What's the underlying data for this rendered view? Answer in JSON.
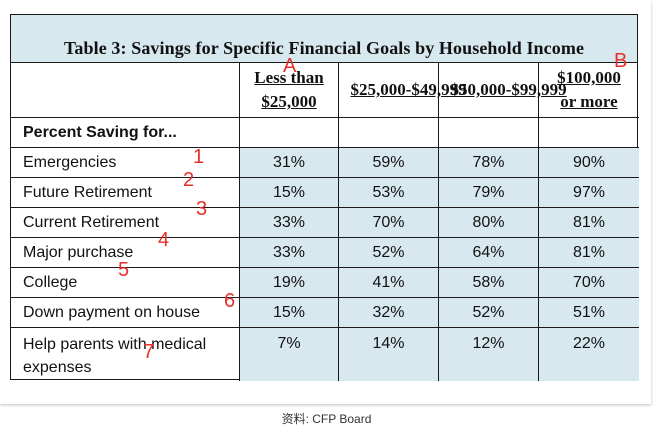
{
  "chart_data": {
    "type": "table",
    "title": "Table 3: Savings for Specific Financial Goals by Household Income",
    "columns": [
      "Less than $25,000",
      "$25,000-$49,999",
      "$50,000-$99,999",
      "$100,000 or more"
    ],
    "section_label": "Percent Saving for...",
    "rows": [
      {
        "label": "Emergencies",
        "values": [
          "31%",
          "59%",
          "78%",
          "90%"
        ]
      },
      {
        "label": "Future Retirement",
        "values": [
          "15%",
          "53%",
          "79%",
          "97%"
        ]
      },
      {
        "label": "Current Retirement",
        "values": [
          "33%",
          "70%",
          "80%",
          "81%"
        ]
      },
      {
        "label": "Major purchase",
        "values": [
          "33%",
          "52%",
          "64%",
          "81%"
        ]
      },
      {
        "label": "College",
        "values": [
          "19%",
          "41%",
          "58%",
          "70%"
        ]
      },
      {
        "label": "Down payment on house",
        "values": [
          "15%",
          "32%",
          "52%",
          "51%"
        ]
      },
      {
        "label": "Help parents with medical expenses",
        "values": [
          "7%",
          "14%",
          "12%",
          "22%"
        ]
      }
    ]
  },
  "annotations": {
    "letters": [
      "A",
      "B"
    ],
    "numbers": [
      "1",
      "2",
      "3",
      "4",
      "5",
      "6",
      "7"
    ]
  },
  "source": "资料: CFP Board"
}
